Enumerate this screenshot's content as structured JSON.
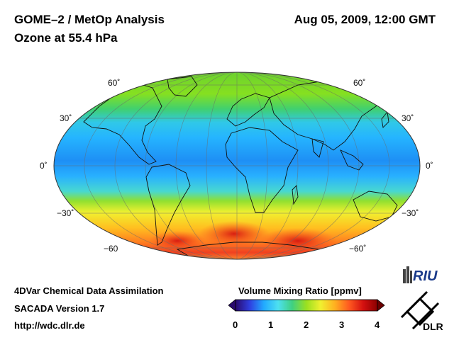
{
  "header": {
    "title": "GOME–2 / MetOp Analysis",
    "subtitle": "Ozone at 55.4 hPa",
    "datetime": "Aug 05, 2009, 12:00 GMT"
  },
  "map": {
    "projection": "Mollweide",
    "lat_labels_left": [
      "60˚",
      "30˚",
      "0˚",
      "−30˚",
      "−60"
    ],
    "lat_labels_right": [
      "60˚",
      "30˚",
      "0˚",
      "−30˚",
      "−60˚"
    ]
  },
  "footer": {
    "line1": "4DVar Chemical Data Assimilation",
    "line2": "SACADA Version 1.7",
    "line3": "http://wdc.dlr.de"
  },
  "legend": {
    "title": "Volume Mixing Ratio [ppmv]",
    "ticks": [
      "0",
      "1",
      "2",
      "3",
      "4"
    ],
    "range": [
      0,
      4
    ],
    "colors": [
      "#2a0a6e",
      "#2f3fe0",
      "#22aaff",
      "#4de0f0",
      "#40d080",
      "#9be020",
      "#f0f030",
      "#ffb020",
      "#ff5a20",
      "#d41010",
      "#8b0000"
    ]
  },
  "logos": {
    "riu": "RIU",
    "dlr": "DLR"
  }
}
